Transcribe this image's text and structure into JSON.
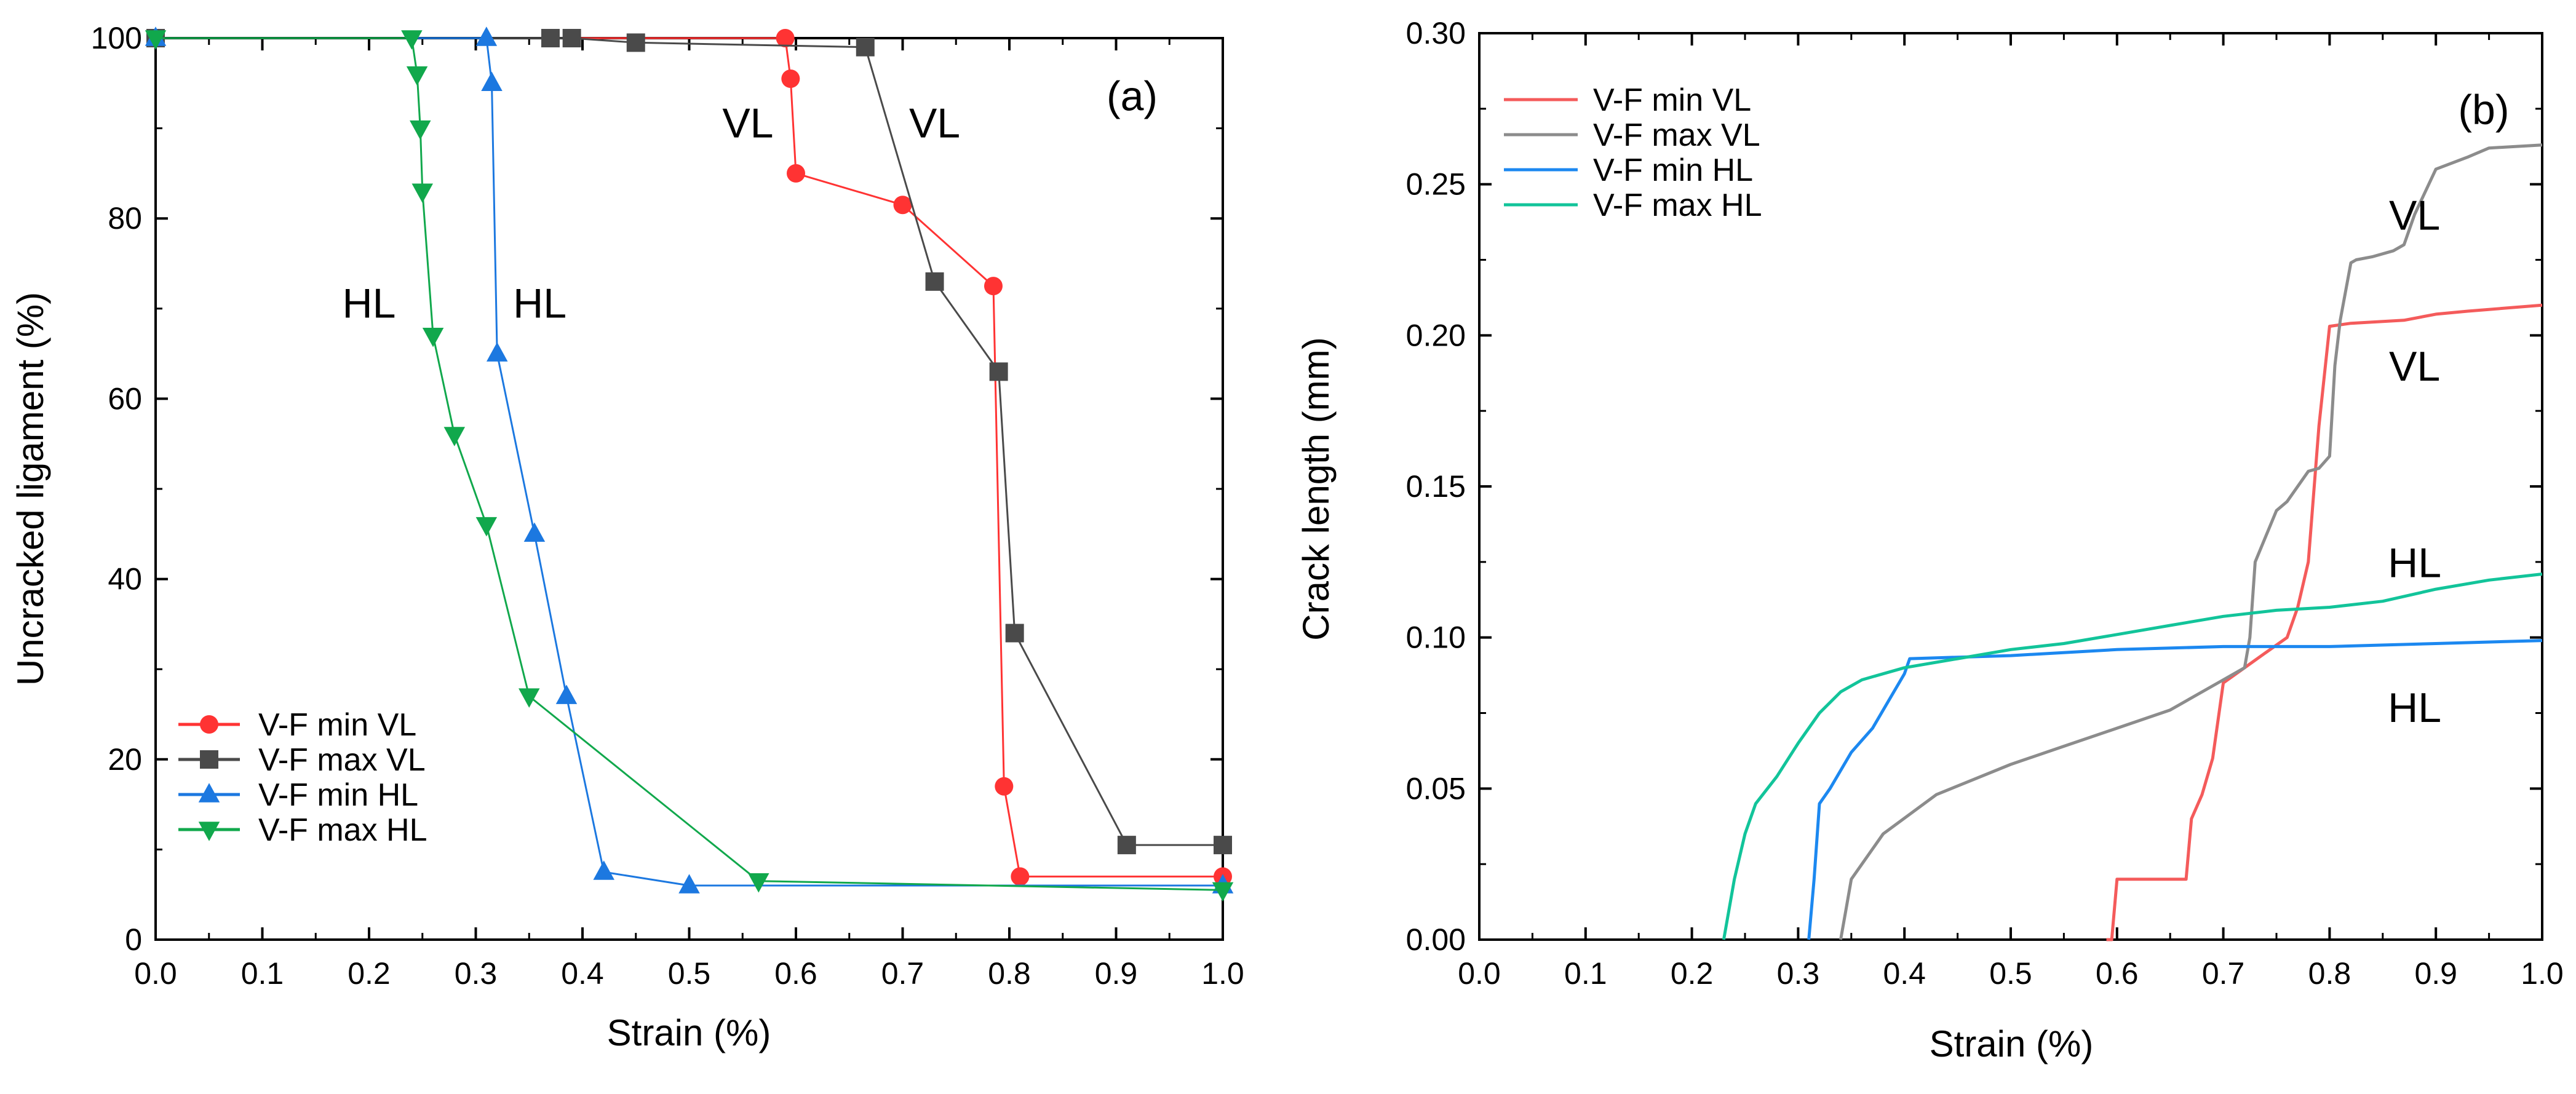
{
  "chart_data": [
    {
      "type": "line",
      "panel": "(a)",
      "xlabel": "Strain (%)",
      "ylabel": "Uncracked ligament (%)",
      "xlim": [
        0,
        1
      ],
      "ylim": [
        0,
        100
      ],
      "xticks": [
        "0.0",
        "0.1",
        "0.2",
        "0.3",
        "0.4",
        "0.5",
        "0.6",
        "0.7",
        "0.8",
        "0.9",
        "1.0"
      ],
      "yticks": [
        "0",
        "20",
        "40",
        "60",
        "80",
        "100"
      ],
      "legend_position": "bottom-left",
      "series": [
        {
          "name": "V-F min VL",
          "color": "#ff3333",
          "marker": "circle",
          "x": [
            0,
            0.59,
            0.595,
            0.6,
            0.7,
            0.785,
            0.795,
            0.81,
            1.0
          ],
          "y": [
            100,
            100,
            95.5,
            85,
            81.5,
            72.5,
            17,
            7,
            7
          ]
        },
        {
          "name": "V-F max VL",
          "color": "#4a4a4a",
          "marker": "square",
          "x": [
            0,
            0.37,
            0.39,
            0.45,
            0.665,
            0.73,
            0.79,
            0.805,
            0.91,
            1.0
          ],
          "y": [
            100,
            100,
            100,
            99.5,
            99,
            73,
            63,
            34,
            10.5,
            10.5
          ]
        },
        {
          "name": "V-F min HL",
          "color": "#1c78e0",
          "marker": "triangle-up",
          "x": [
            0,
            0.31,
            0.315,
            0.32,
            0.355,
            0.385,
            0.42,
            0.5,
            1.0
          ],
          "y": [
            100,
            100,
            95,
            65,
            45,
            27,
            7.5,
            6,
            6
          ]
        },
        {
          "name": "V-F max HL",
          "color": "#11a84c",
          "marker": "triangle-down",
          "x": [
            0,
            0.24,
            0.245,
            0.248,
            0.25,
            0.26,
            0.28,
            0.31,
            0.35,
            0.565,
            1.0
          ],
          "y": [
            100,
            100,
            96,
            90,
            83,
            67,
            56,
            46,
            27,
            6.5,
            5.5
          ]
        }
      ],
      "annotations": [
        {
          "text": "(a)",
          "x": 0.915,
          "y": 92
        },
        {
          "text": "VL",
          "x": 0.555,
          "y": 89
        },
        {
          "text": "VL",
          "x": 0.73,
          "y": 89
        },
        {
          "text": "HL",
          "x": 0.2,
          "y": 69
        },
        {
          "text": "HL",
          "x": 0.36,
          "y": 69
        }
      ]
    },
    {
      "type": "line",
      "panel": "(b)",
      "xlabel": "Strain (%)",
      "ylabel": "Crack length (mm)",
      "xlim": [
        0,
        1
      ],
      "ylim": [
        0,
        0.3
      ],
      "xticks": [
        "0.0",
        "0.1",
        "0.2",
        "0.3",
        "0.4",
        "0.5",
        "0.6",
        "0.7",
        "0.8",
        "0.9",
        "1.0"
      ],
      "yticks": [
        "0.00",
        "0.05",
        "0.10",
        "0.15",
        "0.20",
        "0.25",
        "0.30"
      ],
      "legend_position": "top-left",
      "series": [
        {
          "name": "V-F min VL",
          "color": "#f45b5b",
          "x": [
            0.59,
            0.595,
            0.6,
            0.64,
            0.665,
            0.67,
            0.68,
            0.69,
            0.7,
            0.72,
            0.74,
            0.76,
            0.77,
            0.78,
            0.79,
            0.8,
            0.82,
            0.87,
            0.9,
            0.93,
            1.0
          ],
          "y": [
            0,
            0,
            0.02,
            0.02,
            0.02,
            0.04,
            0.048,
            0.06,
            0.085,
            0.09,
            0.095,
            0.1,
            0.11,
            0.125,
            0.17,
            0.203,
            0.204,
            0.205,
            0.207,
            0.208,
            0.21
          ]
        },
        {
          "name": "V-F max VL",
          "color": "#8c8c8c",
          "x": [
            0.34,
            0.345,
            0.35,
            0.38,
            0.43,
            0.5,
            0.55,
            0.6,
            0.65,
            0.7,
            0.72,
            0.725,
            0.73,
            0.75,
            0.76,
            0.78,
            0.79,
            0.8,
            0.805,
            0.81,
            0.82,
            0.825,
            0.84,
            0.86,
            0.87,
            0.88,
            0.9,
            0.93,
            0.95,
            1.0
          ],
          "y": [
            0,
            0.01,
            0.02,
            0.035,
            0.048,
            0.058,
            0.064,
            0.07,
            0.076,
            0.086,
            0.09,
            0.1,
            0.125,
            0.142,
            0.145,
            0.155,
            0.156,
            0.16,
            0.19,
            0.205,
            0.224,
            0.225,
            0.226,
            0.228,
            0.23,
            0.24,
            0.255,
            0.259,
            0.262,
            0.263
          ]
        },
        {
          "name": "V-F min HL",
          "color": "#1c88f0",
          "x": [
            0.31,
            0.315,
            0.32,
            0.33,
            0.35,
            0.37,
            0.39,
            0.4,
            0.405,
            0.5,
            0.6,
            0.7,
            0.8,
            0.9,
            1.0
          ],
          "y": [
            0,
            0.02,
            0.045,
            0.05,
            0.062,
            0.07,
            0.082,
            0.088,
            0.093,
            0.094,
            0.096,
            0.097,
            0.097,
            0.098,
            0.099
          ]
        },
        {
          "name": "V-F max HL",
          "color": "#12c49a",
          "x": [
            0.23,
            0.24,
            0.25,
            0.26,
            0.28,
            0.3,
            0.32,
            0.34,
            0.36,
            0.37,
            0.4,
            0.45,
            0.5,
            0.55,
            0.6,
            0.65,
            0.7,
            0.75,
            0.8,
            0.85,
            0.9,
            0.95,
            1.0
          ],
          "y": [
            0,
            0.02,
            0.035,
            0.045,
            0.054,
            0.065,
            0.075,
            0.082,
            0.086,
            0.087,
            0.09,
            0.093,
            0.096,
            0.098,
            0.101,
            0.104,
            0.107,
            0.109,
            0.11,
            0.112,
            0.116,
            0.119,
            0.121
          ]
        }
      ],
      "annotations": [
        {
          "text": "(b)",
          "x": 0.945,
          "y": 0.27
        },
        {
          "text": "VL",
          "x": 0.88,
          "y": 0.235
        },
        {
          "text": "VL",
          "x": 0.88,
          "y": 0.185
        },
        {
          "text": "HL",
          "x": 0.88,
          "y": 0.12
        },
        {
          "text": "HL",
          "x": 0.88,
          "y": 0.072
        }
      ]
    }
  ]
}
